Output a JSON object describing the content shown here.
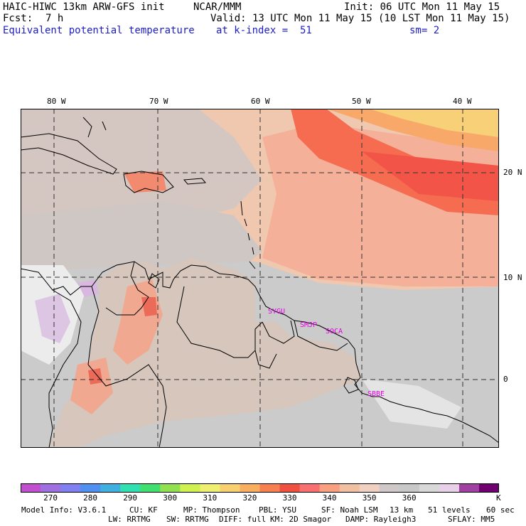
{
  "header": {
    "model": "HAIC-HIWC 13km ARW-GFS init",
    "org": "NCAR/MMM",
    "init": "Init: 06 UTC Mon 11 May 15",
    "fcst_label": "Fcst:",
    "fcst_value": "7 h",
    "valid": "Valid: 13 UTC Mon 11 May 15 (10 LST Mon 11 May 15)",
    "field": "Equivalent potential temperature",
    "level": "at k-index =  51",
    "smooth": "sm= 2"
  },
  "map": {
    "lon_labels": [
      "80 W",
      "70 W",
      "60 W",
      "50 W",
      "40 W"
    ],
    "lat_labels": [
      "20 N",
      "10 N",
      "0"
    ],
    "stations": [
      "SYGU",
      "SMJP",
      "SOCA",
      "SBBE"
    ]
  },
  "colorbar": {
    "colors": [
      "#c050d0",
      "#a070e0",
      "#8080f0",
      "#5090f0",
      "#40b0e0",
      "#30e0b0",
      "#40e070",
      "#90e050",
      "#d0f050",
      "#f0f070",
      "#f8d070",
      "#f8b060",
      "#f88050",
      "#f05040",
      "#f87070",
      "#f8a080",
      "#f0c0a0",
      "#f0d0c0",
      "#d0c8c8",
      "#c8c8c8",
      "#d8d8d8",
      "#e8d0e8",
      "#a040a0",
      "#700070"
    ],
    "ticks": [
      "270",
      "280",
      "290",
      "300",
      "310",
      "320",
      "330",
      "340",
      "350",
      "360"
    ],
    "unit": "K"
  },
  "footer": {
    "line1": [
      "Model Info: V3.6.1",
      "CU: KF",
      "MP: Thompson",
      "PBL: YSU",
      "SF: Noah LSM",
      "13 km",
      "51 levels",
      "60 sec"
    ],
    "line2": [
      "LW: RRTMG",
      "SW: RRTMG",
      "DIFF: full",
      "KM: 2D Smagor",
      "DAMP: Rayleigh3",
      "SFLAY: MM5"
    ]
  }
}
